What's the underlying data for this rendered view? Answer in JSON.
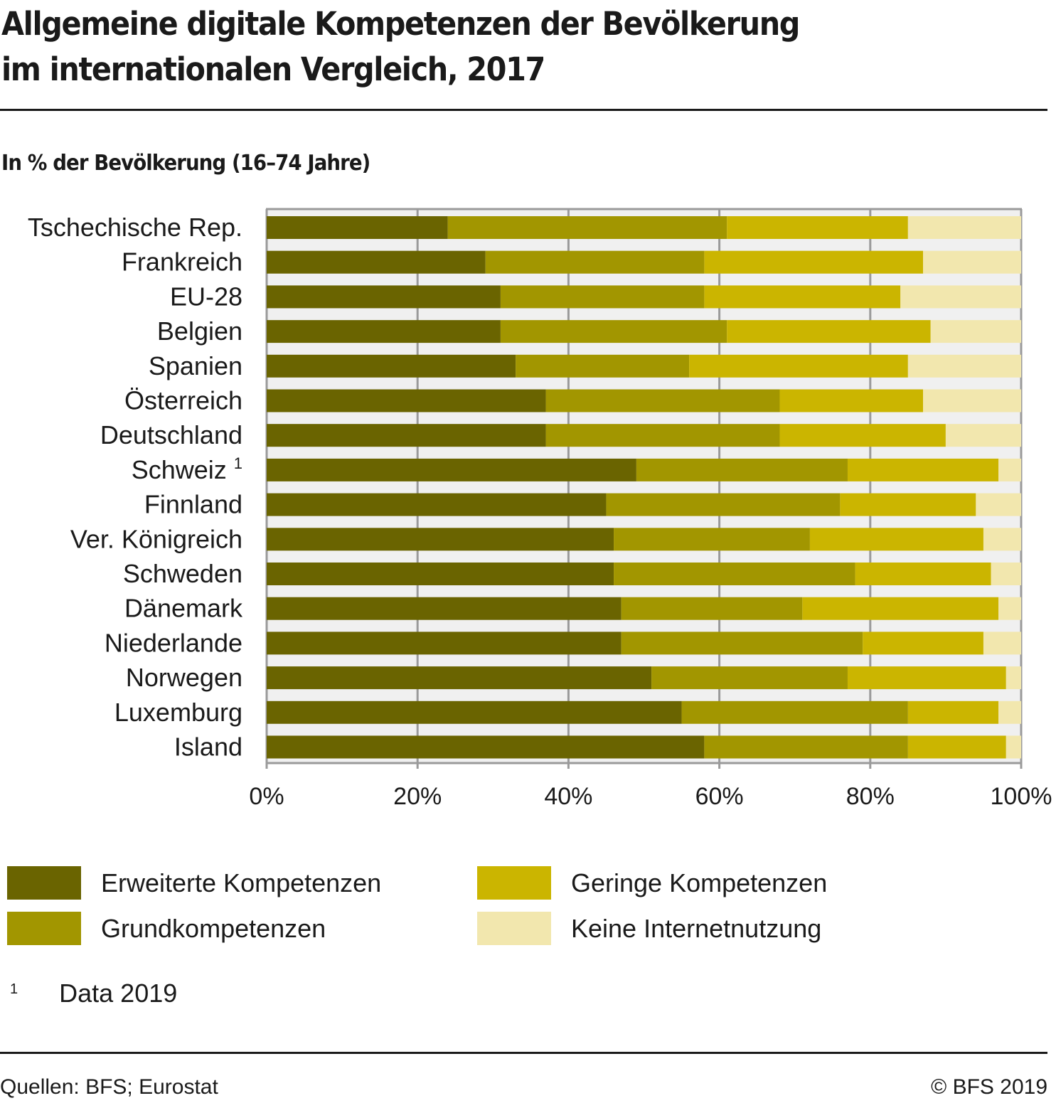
{
  "header": {
    "title_line1": "Allgemeine digitale Kompetenzen der Bevölkerung",
    "title_line2": "im internationalen Vergleich, 2017",
    "subtitle": "In % der Bevölkerung (16–74 Jahre)"
  },
  "colors": {
    "erweiterte": "#6a6400",
    "grund": "#a29600",
    "geringe": "#cbb500",
    "keine": "#f2e7ae",
    "plot_bg": "#f0f0f0",
    "grid": "#9a9a9a"
  },
  "chart_data": {
    "type": "bar",
    "orientation": "horizontal",
    "stacked": true,
    "title": "Allgemeine digitale Kompetenzen der Bevölkerung im internationalen Vergleich, 2017",
    "subtitle": "In % der Bevölkerung (16–74 Jahre)",
    "xlabel": "",
    "ylabel": "",
    "xlim": [
      0,
      100
    ],
    "x_ticks": [
      "0%",
      "20%",
      "40%",
      "60%",
      "80%",
      "100%"
    ],
    "grid": true,
    "legend_position": "bottom",
    "categories": [
      "Tschechische Rep.",
      "Frankreich",
      "EU-28",
      "Belgien",
      "Spanien",
      "Österreich",
      "Deutschland",
      "Schweiz",
      "Finnland",
      "Ver. Königreich",
      "Schweden",
      "Dänemark",
      "Niederlande",
      "Norwegen",
      "Luxemburg",
      "Island"
    ],
    "category_footnotes": [
      "",
      "",
      "",
      "",
      "",
      "",
      "",
      "1",
      "",
      "",
      "",
      "",
      "",
      "",
      "",
      ""
    ],
    "series": [
      {
        "name": "Erweiterte Kompetenzen",
        "color": "#6a6400",
        "values": [
          24,
          29,
          31,
          31,
          33,
          37,
          37,
          49,
          45,
          46,
          46,
          47,
          47,
          51,
          55,
          58
        ]
      },
      {
        "name": "Grundkompetenzen",
        "color": "#a29600",
        "values": [
          37,
          29,
          27,
          30,
          23,
          31,
          31,
          28,
          31,
          26,
          32,
          24,
          32,
          26,
          30,
          27
        ]
      },
      {
        "name": "Geringe Kompetenzen",
        "color": "#cbb500",
        "values": [
          24,
          29,
          26,
          27,
          29,
          19,
          22,
          20,
          18,
          23,
          18,
          26,
          16,
          21,
          12,
          13
        ]
      },
      {
        "name": "Keine Internetnutzung",
        "color": "#f2e7ae",
        "values": [
          15,
          13,
          16,
          12,
          15,
          13,
          10,
          3,
          6,
          5,
          4,
          3,
          5,
          2,
          3,
          2
        ]
      }
    ]
  },
  "legend": [
    {
      "label": "Erweiterte Kompetenzen",
      "color": "#6a6400"
    },
    {
      "label": "Grundkompetenzen",
      "color": "#a29600"
    },
    {
      "label": "Geringe Kompetenzen",
      "color": "#cbb500"
    },
    {
      "label": "Keine Internetnutzung",
      "color": "#f2e7ae"
    }
  ],
  "footnote": {
    "marker": "1",
    "text": "Data 2019"
  },
  "footer": {
    "source": "Quellen: BFS; Eurostat",
    "copyright": "© BFS 2019"
  }
}
